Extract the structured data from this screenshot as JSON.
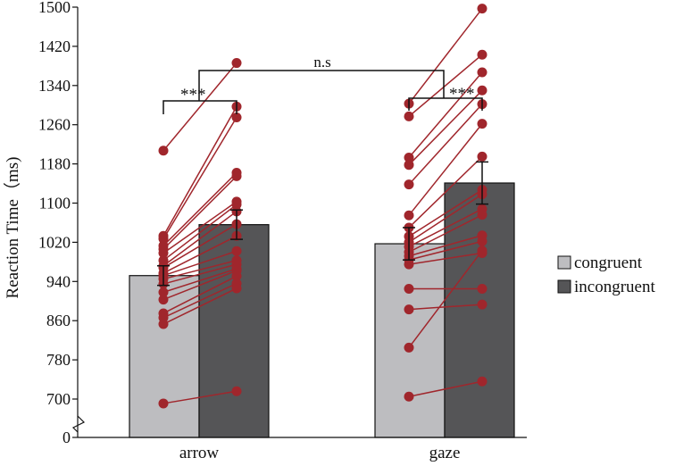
{
  "chart_data": {
    "type": "bar",
    "ylabel": "Reaction Time（ms)",
    "categories": [
      "arrow",
      "gaze"
    ],
    "yticks": [
      0,
      700,
      780,
      860,
      940,
      1020,
      1100,
      1180,
      1260,
      1340,
      1420,
      1500
    ],
    "ylim": [
      660,
      1500
    ],
    "axis_break": true,
    "series": [
      {
        "name": "congruent",
        "color": "#bdbdc0",
        "values": [
          952,
          1017
        ],
        "errors": [
          20,
          33
        ]
      },
      {
        "name": "incongruent",
        "color": "#555557",
        "values": [
          1056,
          1141
        ],
        "errors": [
          30,
          43
        ]
      }
    ],
    "pairs_color": "#a0262c",
    "pairs": [
      {
        "category": "arrow",
        "points": [
          [
            1207,
            1386
          ],
          [
            1033,
            1297
          ],
          [
            1027,
            1275
          ],
          [
            1013,
            1162
          ],
          [
            1006,
            1155
          ],
          [
            998,
            1103
          ],
          [
            983,
            1097
          ],
          [
            972,
            1083
          ],
          [
            968,
            1057
          ],
          [
            957,
            1033
          ],
          [
            952,
            1002
          ],
          [
            945,
            983
          ],
          [
            935,
            975
          ],
          [
            918,
            966
          ],
          [
            903,
            962
          ],
          [
            875,
            951
          ],
          [
            866,
            936
          ],
          [
            853,
            926
          ],
          [
            691,
            716
          ]
        ]
      },
      {
        "category": "gaze",
        "points": [
          [
            1303,
            1497
          ],
          [
            1277,
            1403
          ],
          [
            1193,
            1367
          ],
          [
            1178,
            1330
          ],
          [
            1138,
            1302
          ],
          [
            1075,
            1262
          ],
          [
            1050,
            1195
          ],
          [
            1032,
            1127
          ],
          [
            1020,
            1118
          ],
          [
            1011,
            1088
          ],
          [
            1000,
            1076
          ],
          [
            992,
            1034
          ],
          [
            984,
            1022
          ],
          [
            975,
            998
          ],
          [
            925,
            925
          ],
          [
            883,
            893
          ],
          [
            805,
            1003
          ],
          [
            705,
            736
          ]
        ]
      }
    ],
    "significance": [
      {
        "label": "***",
        "between": "arrow"
      },
      {
        "label": "***",
        "between": "gaze"
      },
      {
        "label": "n.s",
        "between": "arrow-gaze"
      }
    ],
    "legend_placement": "right"
  }
}
